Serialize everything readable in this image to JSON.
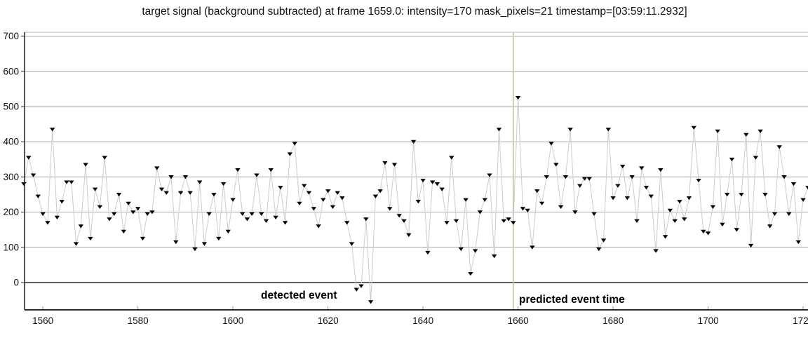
{
  "title": "target signal (background subtracted) at frame 1659.0: intensity=170 mask_pixels=21 timestamp=[03:59:11.2932]",
  "annotations": {
    "detected_event": "detected event",
    "predicted_event": "predicted event time"
  },
  "colors": {
    "background": "#ffffff",
    "grid": "#a6a6a6",
    "axis": "#2b2b2b",
    "signal_line": "#cbcbcb",
    "marker": "#050505",
    "event_line": "#c6c478",
    "text": "#111111"
  },
  "chart_data": {
    "type": "line",
    "title": "target signal (background subtracted) at frame 1659.0: intensity=170 mask_pixels=21 timestamp=[03:59:11.2932]",
    "xlabel": "",
    "ylabel": "",
    "marker": "triangle-down",
    "grid": "horizontal",
    "xlim": [
      1556,
      1721
    ],
    "ylim": [
      -78,
      710
    ],
    "x_ticks": [
      1560,
      1580,
      1600,
      1620,
      1640,
      1660,
      1680,
      1700,
      1720
    ],
    "y_ticks": [
      0,
      100,
      200,
      300,
      400,
      500,
      600,
      700
    ],
    "event_line": {
      "x": 1659,
      "label": "predicted event time"
    },
    "detected_event_x": 1629,
    "series": [
      {
        "name": "target signal",
        "x_start": 1556,
        "x_step": 1,
        "values": [
          280,
          355,
          305,
          245,
          195,
          170,
          435,
          185,
          230,
          285,
          285,
          110,
          160,
          335,
          125,
          265,
          215,
          355,
          180,
          195,
          250,
          145,
          225,
          200,
          210,
          125,
          195,
          200,
          325,
          265,
          255,
          300,
          115,
          255,
          300,
          255,
          95,
          285,
          110,
          195,
          250,
          125,
          280,
          145,
          235,
          320,
          195,
          180,
          195,
          305,
          195,
          175,
          320,
          185,
          270,
          170,
          365,
          395,
          225,
          275,
          255,
          210,
          160,
          235,
          260,
          215,
          255,
          240,
          170,
          110,
          -20,
          -10,
          180,
          -55,
          245,
          260,
          340,
          210,
          335,
          190,
          175,
          135,
          400,
          230,
          290,
          85,
          285,
          280,
          265,
          170,
          355,
          175,
          95,
          235,
          25,
          90,
          200,
          235,
          305,
          75,
          435,
          175,
          180,
          170,
          525,
          210,
          205,
          100,
          260,
          225,
          300,
          395,
          335,
          215,
          300,
          435,
          200,
          275,
          295,
          295,
          195,
          95,
          120,
          435,
          240,
          275,
          330,
          240,
          300,
          175,
          325,
          270,
          245,
          90,
          320,
          130,
          205,
          175,
          230,
          180,
          240,
          440,
          290,
          145,
          140,
          215,
          430,
          165,
          250,
          350,
          150,
          250,
          420,
          105,
          355,
          430,
          250,
          160,
          195,
          385,
          300,
          195,
          280,
          115,
          235,
          270
        ]
      }
    ]
  }
}
